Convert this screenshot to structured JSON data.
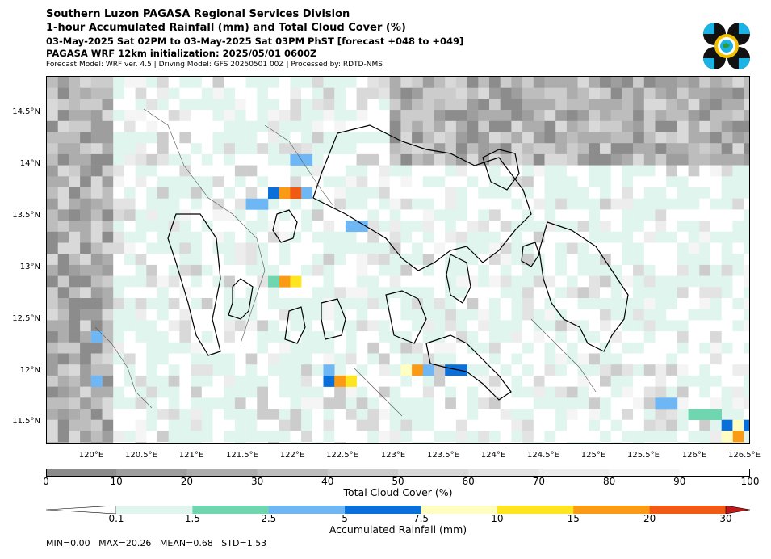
{
  "header": {
    "title_line1": "Southern Luzon PAGASA Regional Services Division",
    "title_line2": "1-hour Accumulated Rainfall (mm) and Total Cloud Cover (%)",
    "valid_time": "03-May-2025 Sat 02PM to 03-May-2025 Sat 03PM PhST [forecast +048 to +049]",
    "init_line": "PAGASA WRF 12km initialization: 2025/05/01 0600Z",
    "model_info": "Forecast Model: WRF ver. 4.5 | Driving Model: GFS 20250501 00Z | Processed by: RDTD-NMS"
  },
  "logo": {
    "name": "pagasa-logo-icon",
    "colors": [
      "#111111",
      "#1ab3e6",
      "#f2c200"
    ]
  },
  "map": {
    "lat_ticks": [
      "14.5°N",
      "14°N",
      "13.5°N",
      "13°N",
      "12.5°N",
      "12°N",
      "11.5°N"
    ],
    "lon_ticks": [
      "120°E",
      "120.5°E",
      "121°E",
      "121.5°E",
      "122°E",
      "122.5°E",
      "123°E",
      "123.5°E",
      "124°E",
      "124.5°E",
      "125°E",
      "125.5°E",
      "126°E",
      "126.5°E"
    ]
  },
  "cloud_colorbar": {
    "ticks": [
      "0",
      "10",
      "20",
      "30",
      "40",
      "50",
      "60",
      "70",
      "80",
      "90",
      "100"
    ],
    "colors": [
      "#8c8c8c",
      "#9e9e9e",
      "#adadad",
      "#bdbdbd",
      "#cccccc",
      "#d9d9d9",
      "#e3e3e3",
      "#ededed",
      "#f5f5f5",
      "#ffffff"
    ],
    "label": "Total Cloud Cover (%)"
  },
  "rain_colorbar": {
    "ticks": [
      "0.1",
      "1.5",
      "2.5",
      "5",
      "7.5",
      "10",
      "15",
      "20",
      "30"
    ],
    "colors": [
      "#dff5ee",
      "#6fd6b0",
      "#6fb6f5",
      "#0a6fd8",
      "#fffec0",
      "#ffe51f",
      "#fb9a15",
      "#f05a12",
      "#c01818"
    ],
    "label": "Accumulated Rainfall (mm)"
  },
  "stats": "MIN=0.00   MAX=20.26   MEAN=0.68   STD=1.53"
}
